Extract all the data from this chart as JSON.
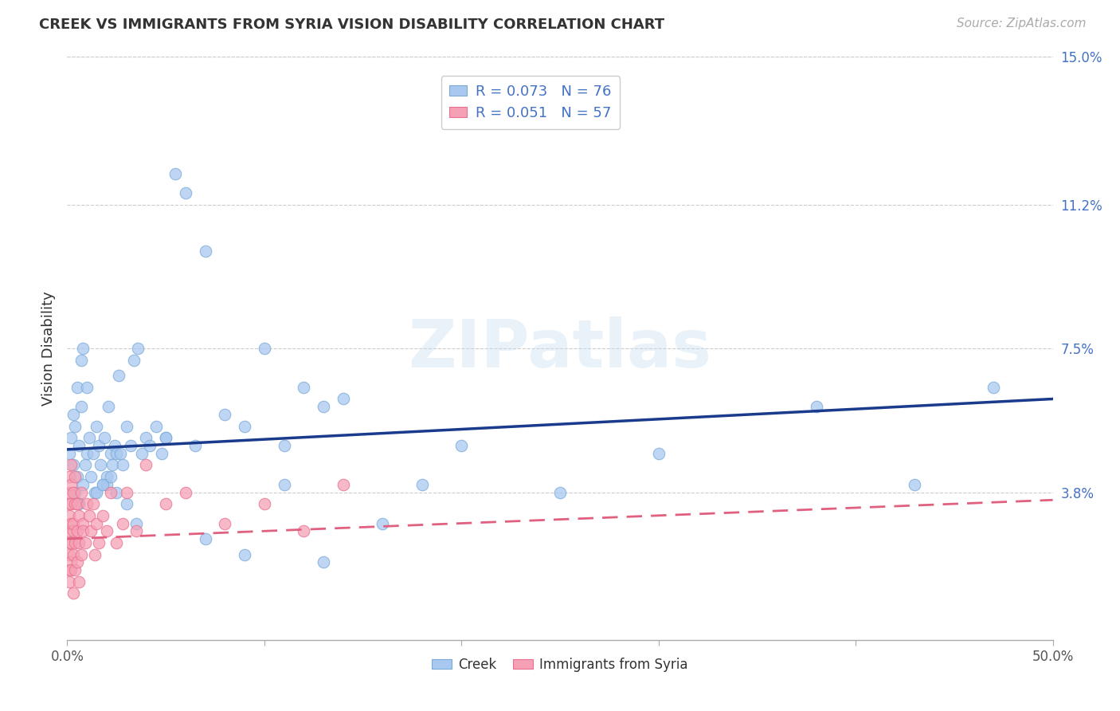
{
  "title": "CREEK VS IMMIGRANTS FROM SYRIA VISION DISABILITY CORRELATION CHART",
  "source": "Source: ZipAtlas.com",
  "ylabel": "Vision Disability",
  "xlim": [
    0,
    0.5
  ],
  "ylim": [
    0,
    0.15
  ],
  "xticks": [
    0.0,
    0.1,
    0.2,
    0.3,
    0.4,
    0.5
  ],
  "xticklabels": [
    "0.0%",
    "",
    "",
    "",
    "",
    "50.0%"
  ],
  "yticks": [
    0.038,
    0.075,
    0.112,
    0.15
  ],
  "yticklabels": [
    "3.8%",
    "7.5%",
    "11.2%",
    "15.0%"
  ],
  "creek_R": 0.073,
  "creek_N": 76,
  "syria_R": 0.051,
  "syria_N": 57,
  "creek_color": "#a8c8f0",
  "syria_color": "#f5a0b5",
  "creek_edge_color": "#7aaad8",
  "syria_edge_color": "#e87090",
  "creek_line_color": "#1a3a8c",
  "syria_line_color": "#e06080",
  "background_color": "#ffffff",
  "grid_color": "#cccccc",
  "watermark": "ZIPatlas",
  "legend_text_color": "#4472c4",
  "creek_x": [
    0.001,
    0.002,
    0.003,
    0.003,
    0.004,
    0.004,
    0.005,
    0.005,
    0.006,
    0.006,
    0.007,
    0.007,
    0.008,
    0.008,
    0.009,
    0.01,
    0.01,
    0.011,
    0.012,
    0.013,
    0.014,
    0.015,
    0.016,
    0.017,
    0.018,
    0.019,
    0.02,
    0.021,
    0.022,
    0.023,
    0.024,
    0.025,
    0.026,
    0.027,
    0.028,
    0.03,
    0.032,
    0.034,
    0.036,
    0.038,
    0.04,
    0.042,
    0.045,
    0.048,
    0.05,
    0.055,
    0.06,
    0.065,
    0.07,
    0.08,
    0.09,
    0.1,
    0.11,
    0.12,
    0.13,
    0.14,
    0.16,
    0.18,
    0.2,
    0.25,
    0.3,
    0.02,
    0.025,
    0.03,
    0.035,
    0.05,
    0.07,
    0.09,
    0.11,
    0.13,
    0.38,
    0.43,
    0.47,
    0.015,
    0.018,
    0.022
  ],
  "creek_y": [
    0.048,
    0.052,
    0.045,
    0.058,
    0.038,
    0.055,
    0.042,
    0.065,
    0.05,
    0.035,
    0.06,
    0.072,
    0.04,
    0.075,
    0.045,
    0.065,
    0.048,
    0.052,
    0.042,
    0.048,
    0.038,
    0.055,
    0.05,
    0.045,
    0.04,
    0.052,
    0.042,
    0.06,
    0.048,
    0.045,
    0.05,
    0.048,
    0.068,
    0.048,
    0.045,
    0.055,
    0.05,
    0.072,
    0.075,
    0.048,
    0.052,
    0.05,
    0.055,
    0.048,
    0.052,
    0.12,
    0.115,
    0.05,
    0.1,
    0.058,
    0.055,
    0.075,
    0.04,
    0.065,
    0.06,
    0.062,
    0.03,
    0.04,
    0.05,
    0.038,
    0.048,
    0.04,
    0.038,
    0.035,
    0.03,
    0.052,
    0.026,
    0.022,
    0.05,
    0.02,
    0.06,
    0.04,
    0.065,
    0.038,
    0.04,
    0.042
  ],
  "syria_x": [
    0.001,
    0.001,
    0.001,
    0.001,
    0.001,
    0.001,
    0.001,
    0.001,
    0.001,
    0.002,
    0.002,
    0.002,
    0.002,
    0.002,
    0.002,
    0.002,
    0.003,
    0.003,
    0.003,
    0.003,
    0.003,
    0.004,
    0.004,
    0.004,
    0.004,
    0.005,
    0.005,
    0.005,
    0.006,
    0.006,
    0.006,
    0.007,
    0.007,
    0.008,
    0.008,
    0.009,
    0.01,
    0.011,
    0.012,
    0.013,
    0.014,
    0.015,
    0.016,
    0.018,
    0.02,
    0.022,
    0.025,
    0.028,
    0.03,
    0.035,
    0.04,
    0.05,
    0.06,
    0.08,
    0.1,
    0.12,
    0.14
  ],
  "syria_y": [
    0.018,
    0.022,
    0.028,
    0.032,
    0.038,
    0.042,
    0.025,
    0.015,
    0.035,
    0.02,
    0.03,
    0.025,
    0.04,
    0.035,
    0.018,
    0.045,
    0.028,
    0.022,
    0.038,
    0.03,
    0.012,
    0.035,
    0.025,
    0.042,
    0.018,
    0.028,
    0.035,
    0.02,
    0.032,
    0.025,
    0.015,
    0.038,
    0.022,
    0.03,
    0.028,
    0.025,
    0.035,
    0.032,
    0.028,
    0.035,
    0.022,
    0.03,
    0.025,
    0.032,
    0.028,
    0.038,
    0.025,
    0.03,
    0.038,
    0.028,
    0.045,
    0.035,
    0.038,
    0.03,
    0.035,
    0.028,
    0.04
  ]
}
